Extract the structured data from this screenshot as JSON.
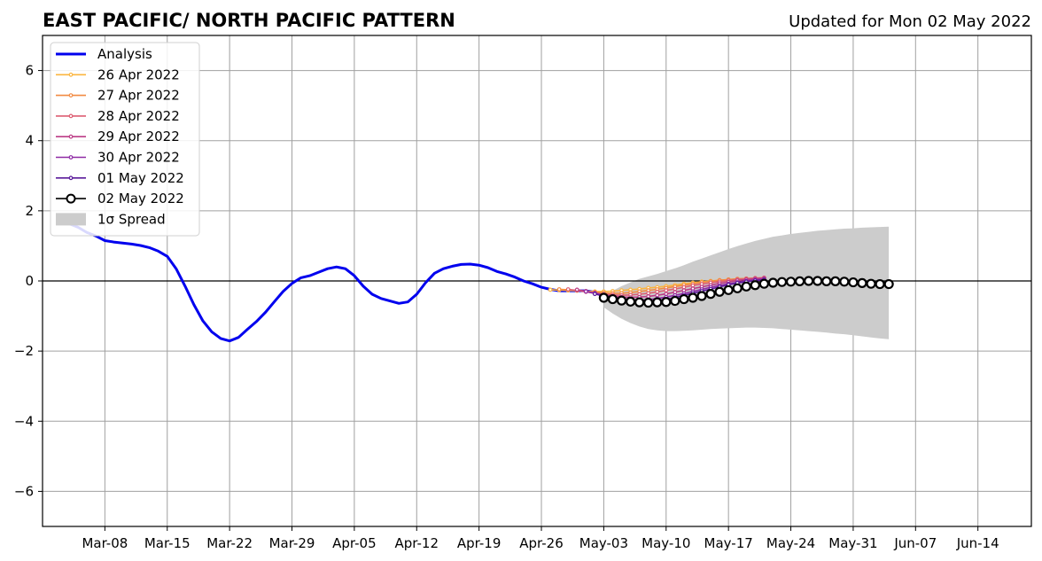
{
  "chart_data": {
    "type": "line",
    "title": "EAST PACIFIC/ NORTH PACIFIC PATTERN",
    "subtitle": "Updated for Mon 02 May 2022",
    "xlabel": "",
    "ylabel": "",
    "x_range": [
      "2022-03-01",
      "2022-06-20"
    ],
    "ylim": [
      -7,
      7
    ],
    "yticks": [
      -6,
      -4,
      -2,
      0,
      2,
      4,
      6
    ],
    "ytick_labels": [
      "−6",
      "−4",
      "−2",
      "0",
      "2",
      "4",
      "6"
    ],
    "xticks": [
      "2022-03-08",
      "2022-03-15",
      "2022-03-22",
      "2022-03-29",
      "2022-04-05",
      "2022-04-12",
      "2022-04-19",
      "2022-04-26",
      "2022-05-03",
      "2022-05-10",
      "2022-05-17",
      "2022-05-24",
      "2022-05-31",
      "2022-06-07",
      "2022-06-14"
    ],
    "xtick_labels": [
      "Mar-08",
      "Mar-15",
      "Mar-22",
      "Mar-29",
      "Apr-05",
      "Apr-12",
      "Apr-19",
      "Apr-26",
      "May-03",
      "May-10",
      "May-17",
      "May-24",
      "May-31",
      "Jun-07",
      "Jun-14"
    ],
    "grid": true,
    "zero_line": true,
    "legend": {
      "placement": "top-left",
      "entries": [
        "Analysis",
        "26 Apr 2022",
        "27 Apr 2022",
        "28 Apr 2022",
        "29 Apr 2022",
        "30 Apr 2022",
        "01 May 2022",
        "02 May 2022",
        "1σ Spread"
      ]
    },
    "analysis": {
      "name": "Analysis",
      "color": "#0000ee",
      "start": "2022-03-03",
      "values": [
        1.72,
        1.63,
        1.53,
        1.38,
        1.28,
        1.15,
        1.11,
        1.08,
        1.05,
        1.01,
        0.95,
        0.85,
        0.7,
        0.35,
        -0.15,
        -0.68,
        -1.14,
        -1.45,
        -1.64,
        -1.71,
        -1.61,
        -1.38,
        -1.16,
        -0.9,
        -0.6,
        -0.3,
        -0.07,
        0.09,
        0.15,
        0.25,
        0.35,
        0.4,
        0.35,
        0.15,
        -0.15,
        -0.38,
        -0.5,
        -0.57,
        -0.64,
        -0.6,
        -0.38,
        -0.05,
        0.22,
        0.35,
        0.42,
        0.47,
        0.48,
        0.45,
        0.38,
        0.27,
        0.2,
        0.11,
        0.0,
        -0.08,
        -0.18,
        -0.24,
        -0.28,
        -0.28,
        -0.28,
        -0.28,
        -0.32,
        -0.38,
        -0.46
      ]
    },
    "forecasts": [
      {
        "name": "26 Apr 2022",
        "color": "#fbb53f",
        "start": "2022-04-27",
        "values": [
          -0.25,
          -0.26,
          -0.27,
          -0.28,
          -0.29,
          -0.3,
          -0.3,
          -0.29,
          -0.27,
          -0.25,
          -0.23,
          -0.2,
          -0.18,
          -0.15,
          -0.12,
          -0.08,
          -0.05,
          -0.02,
          0.0,
          0.02,
          0.04,
          0.05,
          0.06,
          0.07,
          0.08
        ]
      },
      {
        "name": "27 Apr 2022",
        "color": "#f28a42",
        "start": "2022-04-28",
        "values": [
          -0.24,
          -0.25,
          -0.27,
          -0.3,
          -0.32,
          -0.34,
          -0.35,
          -0.35,
          -0.33,
          -0.3,
          -0.27,
          -0.24,
          -0.2,
          -0.16,
          -0.12,
          -0.08,
          -0.04,
          -0.01,
          0.02,
          0.04,
          0.06,
          0.07,
          0.08,
          0.09
        ]
      },
      {
        "name": "28 Apr 2022",
        "color": "#dd5e72",
        "start": "2022-04-29",
        "values": [
          -0.24,
          -0.27,
          -0.31,
          -0.35,
          -0.38,
          -0.4,
          -0.41,
          -0.4,
          -0.38,
          -0.35,
          -0.31,
          -0.27,
          -0.23,
          -0.18,
          -0.13,
          -0.09,
          -0.05,
          -0.02,
          0.01,
          0.04,
          0.06,
          0.08,
          0.09
        ]
      },
      {
        "name": "29 Apr 2022",
        "color": "#bc3c86",
        "start": "2022-04-30",
        "values": [
          -0.25,
          -0.29,
          -0.34,
          -0.39,
          -0.43,
          -0.46,
          -0.47,
          -0.46,
          -0.44,
          -0.41,
          -0.37,
          -0.32,
          -0.27,
          -0.22,
          -0.17,
          -0.12,
          -0.07,
          -0.03,
          0.01,
          0.04,
          0.06,
          0.08
        ]
      },
      {
        "name": "30 Apr 2022",
        "color": "#8f2ba5",
        "start": "2022-05-01",
        "values": [
          -0.3,
          -0.36,
          -0.42,
          -0.47,
          -0.51,
          -0.53,
          -0.54,
          -0.53,
          -0.5,
          -0.46,
          -0.41,
          -0.36,
          -0.3,
          -0.24,
          -0.18,
          -0.13,
          -0.08,
          -0.04,
          0.0,
          0.03,
          0.05
        ]
      },
      {
        "name": "01 May 2022",
        "color": "#5a1a9a",
        "start": "2022-05-02",
        "values": [
          -0.37,
          -0.44,
          -0.5,
          -0.55,
          -0.58,
          -0.59,
          -0.58,
          -0.56,
          -0.52,
          -0.47,
          -0.41,
          -0.35,
          -0.29,
          -0.23,
          -0.17,
          -0.11,
          -0.06,
          -0.02,
          0.01,
          0.03
        ]
      }
    ],
    "forecast_latest": {
      "name": "02 May 2022",
      "color": "#000000",
      "start": "2022-05-03",
      "values": [
        -0.48,
        -0.52,
        -0.56,
        -0.59,
        -0.61,
        -0.62,
        -0.61,
        -0.6,
        -0.57,
        -0.52,
        -0.48,
        -0.43,
        -0.37,
        -0.31,
        -0.26,
        -0.21,
        -0.16,
        -0.12,
        -0.08,
        -0.05,
        -0.03,
        -0.02,
        -0.01,
        0.0,
        0.0,
        -0.01,
        -0.01,
        -0.02,
        -0.04,
        -0.06,
        -0.08,
        -0.09,
        -0.09
      ]
    },
    "spread": {
      "name": "1σ Spread",
      "color": "#cccccc",
      "start": "2022-05-03",
      "upper": [
        -0.45,
        -0.28,
        -0.15,
        -0.04,
        0.06,
        0.13,
        0.2,
        0.28,
        0.36,
        0.45,
        0.55,
        0.64,
        0.73,
        0.82,
        0.91,
        0.99,
        1.07,
        1.14,
        1.2,
        1.26,
        1.3,
        1.34,
        1.37,
        1.4,
        1.43,
        1.45,
        1.47,
        1.49,
        1.5,
        1.52,
        1.53,
        1.54,
        1.55
      ],
      "lower": [
        -0.75,
        -0.93,
        -1.08,
        -1.2,
        -1.3,
        -1.37,
        -1.41,
        -1.43,
        -1.43,
        -1.42,
        -1.41,
        -1.39,
        -1.37,
        -1.36,
        -1.35,
        -1.34,
        -1.33,
        -1.33,
        -1.34,
        -1.35,
        -1.37,
        -1.39,
        -1.41,
        -1.43,
        -1.45,
        -1.47,
        -1.5,
        -1.52,
        -1.55,
        -1.58,
        -1.61,
        -1.64,
        -1.66
      ]
    }
  }
}
